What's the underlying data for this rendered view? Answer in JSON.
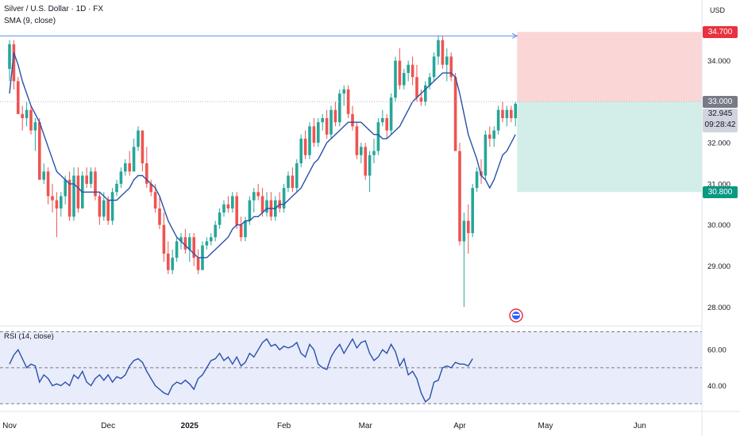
{
  "legend": {
    "title": "Silver / U.S. Dollar · 1D · FX",
    "sma": "SMA (9, close)",
    "rsi": "RSI (14, close)"
  },
  "currency": "USD",
  "badges": {
    "stop": "34.700",
    "entry": "33.000",
    "last_price": "32.945",
    "countdown": "09:28:42",
    "target": "30.800"
  },
  "colors": {
    "up": "#26a69a",
    "down": "#ef5350",
    "sma": "#2950a8",
    "rsi": "#2950a8",
    "rsi_band": "#e8ecfb",
    "stop_zone": "#fbd6d6",
    "target_zone": "#d3eee8",
    "stop_badge": "#e8323f",
    "entry_badge": "#787b86",
    "target_badge": "#089981"
  },
  "chart_data": [
    {
      "type": "candlestick",
      "title": "Silver / U.S. Dollar · 1D · FX",
      "y_ticks": [
        "34.000",
        "33.000",
        "32.000",
        "31.000",
        "30.000",
        "29.000",
        "28.000"
      ],
      "ylim": [
        27.6,
        35.4
      ],
      "x_ticks": [
        "Nov",
        "Dec",
        "2025",
        "Feb",
        "Mar",
        "Apr",
        "May",
        "Jun"
      ],
      "grid": false,
      "candles": [
        [
          33.8,
          34.5,
          33.5,
          34.4
        ],
        [
          34.4,
          34.5,
          33.3,
          33.5
        ],
        [
          33.5,
          33.6,
          32.7,
          32.7
        ],
        [
          32.7,
          32.9,
          32.3,
          32.6
        ],
        [
          32.6,
          33.0,
          32.4,
          32.8
        ],
        [
          32.8,
          32.9,
          32.2,
          32.3
        ],
        [
          32.3,
          32.6,
          31.8,
          32.5
        ],
        [
          32.5,
          32.6,
          31.1,
          31.1
        ],
        [
          31.1,
          31.5,
          31.0,
          31.3
        ],
        [
          31.3,
          31.4,
          30.5,
          30.7
        ],
        [
          30.7,
          31.0,
          30.3,
          30.6
        ],
        [
          30.6,
          30.8,
          29.7,
          30.4
        ],
        [
          30.4,
          30.8,
          30.2,
          30.7
        ],
        [
          30.7,
          31.2,
          30.5,
          31.1
        ],
        [
          31.1,
          31.3,
          30.1,
          30.2
        ],
        [
          30.2,
          31.4,
          30.1,
          31.2
        ],
        [
          31.2,
          31.4,
          30.3,
          30.4
        ],
        [
          30.4,
          31.3,
          30.4,
          31.2
        ],
        [
          31.2,
          31.4,
          30.9,
          31.0
        ],
        [
          31.0,
          31.4,
          30.9,
          31.3
        ],
        [
          31.3,
          31.4,
          30.6,
          30.7
        ],
        [
          30.7,
          30.8,
          30.0,
          30.2
        ],
        [
          30.2,
          30.8,
          30.1,
          30.6
        ],
        [
          30.6,
          30.7,
          30.0,
          30.1
        ],
        [
          30.1,
          30.9,
          30.0,
          30.8
        ],
        [
          30.8,
          31.1,
          30.7,
          31.0
        ],
        [
          31.0,
          31.4,
          30.9,
          31.3
        ],
        [
          31.3,
          31.6,
          31.2,
          31.5
        ],
        [
          31.5,
          31.8,
          31.2,
          31.3
        ],
        [
          31.3,
          32.1,
          31.3,
          31.9
        ],
        [
          31.9,
          32.4,
          31.8,
          32.3
        ],
        [
          32.3,
          32.3,
          31.3,
          31.5
        ],
        [
          31.5,
          31.9,
          30.9,
          31.0
        ],
        [
          31.0,
          31.1,
          30.7,
          30.8
        ],
        [
          30.8,
          31.0,
          30.3,
          30.4
        ],
        [
          30.4,
          30.7,
          29.9,
          30.0
        ],
        [
          30.0,
          30.3,
          29.1,
          29.3
        ],
        [
          29.3,
          29.6,
          28.8,
          28.9
        ],
        [
          28.9,
          29.4,
          28.8,
          29.2
        ],
        [
          29.2,
          29.7,
          29.1,
          29.6
        ],
        [
          29.6,
          29.8,
          29.4,
          29.7
        ],
        [
          29.7,
          29.9,
          29.3,
          29.4
        ],
        [
          29.4,
          29.8,
          29.1,
          29.7
        ],
        [
          29.7,
          29.8,
          29.0,
          29.2
        ],
        [
          29.2,
          29.4,
          28.8,
          28.9
        ],
        [
          28.9,
          29.6,
          28.9,
          29.5
        ],
        [
          29.5,
          29.7,
          29.4,
          29.6
        ],
        [
          29.6,
          29.8,
          29.5,
          29.7
        ],
        [
          29.7,
          30.1,
          29.6,
          30.0
        ],
        [
          30.0,
          30.4,
          29.9,
          30.3
        ],
        [
          30.3,
          30.6,
          30.2,
          30.5
        ],
        [
          30.5,
          30.7,
          30.3,
          30.4
        ],
        [
          30.4,
          30.8,
          30.3,
          30.7
        ],
        [
          30.7,
          30.8,
          29.9,
          30.0
        ],
        [
          30.0,
          30.2,
          29.6,
          29.7
        ],
        [
          29.7,
          30.2,
          29.6,
          30.1
        ],
        [
          30.1,
          30.7,
          30.0,
          30.6
        ],
        [
          30.6,
          30.9,
          30.3,
          30.8
        ],
        [
          30.8,
          31.0,
          30.6,
          30.7
        ],
        [
          30.7,
          30.9,
          30.2,
          30.3
        ],
        [
          30.3,
          30.8,
          30.2,
          30.6
        ],
        [
          30.6,
          30.8,
          30.1,
          30.2
        ],
        [
          30.2,
          30.7,
          30.1,
          30.6
        ],
        [
          30.6,
          30.8,
          30.3,
          30.4
        ],
        [
          30.4,
          31.0,
          30.3,
          30.9
        ],
        [
          30.9,
          31.3,
          30.8,
          31.2
        ],
        [
          31.2,
          31.4,
          30.8,
          30.9
        ],
        [
          30.9,
          31.6,
          30.8,
          31.5
        ],
        [
          31.5,
          32.2,
          31.4,
          32.1
        ],
        [
          32.1,
          32.3,
          31.6,
          31.7
        ],
        [
          31.7,
          32.5,
          31.6,
          32.4
        ],
        [
          32.4,
          32.6,
          31.9,
          32.0
        ],
        [
          32.0,
          32.6,
          31.9,
          32.5
        ],
        [
          32.5,
          32.7,
          32.3,
          32.6
        ],
        [
          32.6,
          32.8,
          32.1,
          32.2
        ],
        [
          32.2,
          32.9,
          32.1,
          32.8
        ],
        [
          32.8,
          33.0,
          32.4,
          32.5
        ],
        [
          32.5,
          33.3,
          32.4,
          33.2
        ],
        [
          33.2,
          33.4,
          32.9,
          33.3
        ],
        [
          33.3,
          33.4,
          32.6,
          32.7
        ],
        [
          32.7,
          32.9,
          32.3,
          32.4
        ],
        [
          32.4,
          32.5,
          31.6,
          31.7
        ],
        [
          31.7,
          32.0,
          31.5,
          31.9
        ],
        [
          31.9,
          32.0,
          31.1,
          31.2
        ],
        [
          31.2,
          31.8,
          30.8,
          31.7
        ],
        [
          31.7,
          32.1,
          31.5,
          31.8
        ],
        [
          31.8,
          32.6,
          31.7,
          32.5
        ],
        [
          32.5,
          32.8,
          32.4,
          32.6
        ],
        [
          32.6,
          32.7,
          32.1,
          32.3
        ],
        [
          32.3,
          33.2,
          32.2,
          33.1
        ],
        [
          33.1,
          34.1,
          33.0,
          34.0
        ],
        [
          34.0,
          34.3,
          33.3,
          33.4
        ],
        [
          33.4,
          33.8,
          33.3,
          33.7
        ],
        [
          33.7,
          34.0,
          33.5,
          33.9
        ],
        [
          33.9,
          34.1,
          33.4,
          33.6
        ],
        [
          33.6,
          33.9,
          33.0,
          33.1
        ],
        [
          33.1,
          33.3,
          32.9,
          33.0
        ],
        [
          33.0,
          33.5,
          32.9,
          33.4
        ],
        [
          33.4,
          33.7,
          33.3,
          33.6
        ],
        [
          33.6,
          34.2,
          33.5,
          34.1
        ],
        [
          34.1,
          34.6,
          33.9,
          34.5
        ],
        [
          34.5,
          34.6,
          33.8,
          33.9
        ],
        [
          33.9,
          34.3,
          33.5,
          34.1
        ],
        [
          34.1,
          34.2,
          33.5,
          33.6
        ],
        [
          33.6,
          33.7,
          31.8,
          31.8
        ],
        [
          31.8,
          32.0,
          29.5,
          29.6
        ],
        [
          29.6,
          30.3,
          28.0,
          30.1
        ],
        [
          30.1,
          30.5,
          29.3,
          29.8
        ],
        [
          29.8,
          31.0,
          29.7,
          30.9
        ],
        [
          30.9,
          31.4,
          30.8,
          31.3
        ],
        [
          31.3,
          31.6,
          31.0,
          31.2
        ],
        [
          31.2,
          32.3,
          31.1,
          32.2
        ],
        [
          32.2,
          32.4,
          31.9,
          32.1
        ],
        [
          32.1,
          32.4,
          31.9,
          32.3
        ],
        [
          32.3,
          32.9,
          32.2,
          32.8
        ],
        [
          32.8,
          33.0,
          32.5,
          32.6
        ],
        [
          32.6,
          32.9,
          32.4,
          32.8
        ],
        [
          32.8,
          32.9,
          32.5,
          32.6
        ],
        [
          32.6,
          33.0,
          32.4,
          32.95
        ]
      ],
      "sma": [
        33.2,
        34.2,
        33.9,
        33.5,
        33.2,
        32.9,
        32.7,
        32.5,
        32.2,
        31.9,
        31.6,
        31.3,
        31.2,
        31.1,
        31.0,
        31.0,
        30.9,
        30.8,
        30.8,
        30.8,
        30.8,
        30.8,
        30.7,
        30.6,
        30.6,
        30.6,
        30.7,
        30.8,
        30.9,
        31.1,
        31.2,
        31.2,
        31.1,
        31.0,
        30.9,
        30.7,
        30.4,
        30.1,
        29.9,
        29.7,
        29.6,
        29.5,
        29.4,
        29.3,
        29.2,
        29.2,
        29.2,
        29.3,
        29.4,
        29.5,
        29.6,
        29.7,
        29.9,
        30.0,
        30.0,
        30.1,
        30.1,
        30.2,
        30.2,
        30.3,
        30.4,
        30.4,
        30.4,
        30.5,
        30.5,
        30.6,
        30.7,
        30.8,
        30.9,
        31.1,
        31.3,
        31.5,
        31.6,
        31.8,
        32.0,
        32.1,
        32.2,
        32.3,
        32.4,
        32.5,
        32.5,
        32.5,
        32.5,
        32.4,
        32.3,
        32.2,
        32.2,
        32.1,
        32.1,
        32.2,
        32.3,
        32.4,
        32.6,
        32.8,
        33.0,
        33.1,
        33.2,
        33.3,
        33.4,
        33.5,
        33.6,
        33.7,
        33.7,
        33.7,
        33.6,
        33.2,
        32.7,
        32.2,
        31.9,
        31.6,
        31.2,
        31.1,
        30.9,
        31.1,
        31.4,
        31.7,
        31.8,
        32.0,
        32.2
      ],
      "trade_levels": {
        "stop": 34.7,
        "entry": 33.0,
        "target": 30.8,
        "last": 32.945
      }
    },
    {
      "type": "line",
      "title": "RSI (14, close)",
      "y_ticks": [
        "60.00",
        "40.00"
      ],
      "ylim": [
        27,
        72
      ],
      "band": [
        30,
        70
      ],
      "midline": 50,
      "values": [
        52,
        57,
        60,
        55,
        50,
        52,
        51,
        42,
        46,
        44,
        40,
        41,
        40,
        42,
        40,
        46,
        44,
        48,
        42,
        40,
        44,
        46,
        43,
        46,
        42,
        45,
        44,
        46,
        51,
        54,
        55,
        53,
        48,
        44,
        40,
        38,
        36,
        35,
        40,
        42,
        41,
        43,
        41,
        38,
        44,
        46,
        50,
        54,
        55,
        58,
        54,
        56,
        52,
        56,
        51,
        53,
        58,
        56,
        60,
        64,
        66,
        62,
        63,
        60,
        62,
        61,
        62,
        64,
        58,
        56,
        63,
        60,
        52,
        50,
        49,
        56,
        60,
        63,
        58,
        62,
        66,
        61,
        64,
        65,
        58,
        54,
        56,
        60,
        58,
        63,
        59,
        51,
        55,
        46,
        48,
        44,
        36,
        31,
        33,
        42,
        43,
        50,
        51,
        50,
        53,
        52,
        52,
        51,
        55
      ]
    }
  ]
}
